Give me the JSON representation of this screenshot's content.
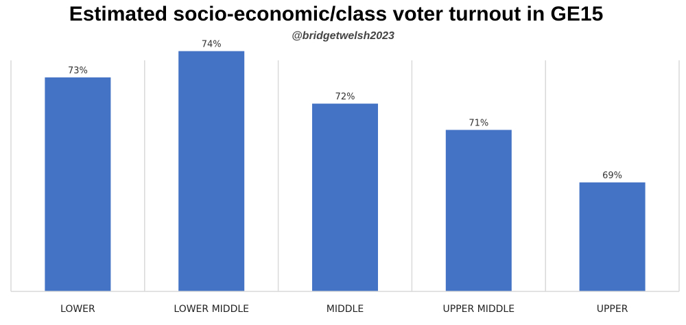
{
  "chart_data": {
    "type": "bar",
    "title": "Estimated socio-economic/class voter turnout in GE15",
    "subtitle": "@bridgetwelsh2023",
    "categories": [
      "LOWER",
      "LOWER MIDDLE",
      "MIDDLE",
      "UPPER MIDDLE",
      "UPPER"
    ],
    "values": [
      73,
      74,
      72,
      71,
      69
    ],
    "data_labels": [
      "73%",
      "74%",
      "72%",
      "71%",
      "69%"
    ],
    "bar_color": "#4472C4",
    "grid": "vertical separators",
    "legend": "none"
  }
}
